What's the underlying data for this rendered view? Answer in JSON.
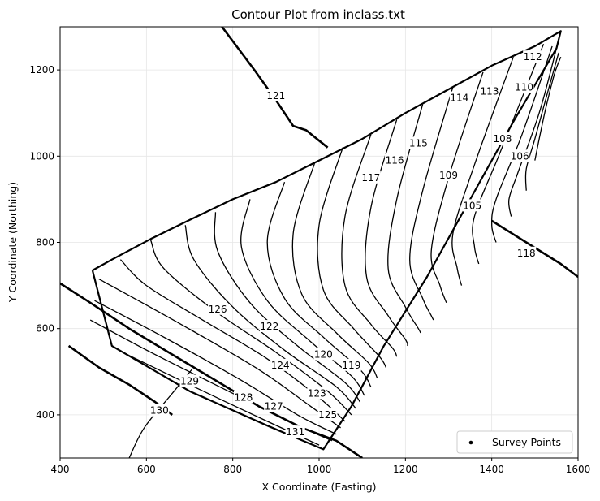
{
  "chart_data": {
    "type": "contour",
    "title": "Contour Plot from inclass.txt",
    "xlabel": "X Coordinate (Easting)",
    "ylabel": "Y Coordinate (Northing)",
    "xlim": [
      400,
      1600
    ],
    "ylim": [
      300,
      1300
    ],
    "xticks": [
      "400",
      "600",
      "800",
      "1000",
      "1200",
      "1400",
      "1600"
    ],
    "yticks": [
      "400",
      "600",
      "800",
      "1000",
      "1200"
    ],
    "grid": true,
    "legend": {
      "placement": "lower-right",
      "entries": [
        "Survey Points"
      ]
    },
    "hull": [
      [
        475,
        735
      ],
      [
        520,
        760
      ],
      [
        610,
        808
      ],
      [
        700,
        852
      ],
      [
        800,
        900
      ],
      [
        900,
        940
      ],
      [
        1000,
        990
      ],
      [
        1100,
        1040
      ],
      [
        1200,
        1100
      ],
      [
        1300,
        1155
      ],
      [
        1400,
        1210
      ],
      [
        1500,
        1255
      ],
      [
        1560,
        1290
      ],
      [
        1550,
        1250
      ],
      [
        1450,
        1080
      ],
      [
        1350,
        900
      ],
      [
        1250,
        720
      ],
      [
        1150,
        560
      ],
      [
        1075,
        420
      ],
      [
        1010,
        320
      ],
      [
        880,
        375
      ],
      [
        700,
        455
      ],
      [
        520,
        560
      ],
      [
        475,
        735
      ]
    ],
    "contours": [
      {
        "level": "131",
        "points": [
          [
            545,
            545
          ],
          [
            700,
            470
          ],
          [
            880,
            385
          ],
          [
            1000,
            330
          ]
        ]
      },
      {
        "level": "130",
        "points": [
          [
            560,
            300
          ],
          [
            595,
            370
          ],
          [
            660,
            450
          ],
          [
            705,
            505
          ]
        ]
      },
      {
        "level": "129",
        "points": [
          [
            470,
            620
          ],
          [
            620,
            540
          ],
          [
            800,
            450
          ],
          [
            940,
            380
          ],
          [
            1030,
            340
          ]
        ]
      },
      {
        "level": "128",
        "points": [
          [
            480,
            665
          ],
          [
            650,
            575
          ],
          [
            820,
            480
          ],
          [
            950,
            400
          ],
          [
            1040,
            355
          ]
        ]
      },
      {
        "level": "127",
        "points": [
          [
            490,
            715
          ],
          [
            680,
            610
          ],
          [
            860,
            505
          ],
          [
            980,
            420
          ],
          [
            1050,
            370
          ]
        ]
      },
      {
        "level": "126",
        "points": [
          [
            540,
            760
          ],
          [
            600,
            700
          ],
          [
            730,
            620
          ],
          [
            880,
            530
          ],
          [
            1000,
            440
          ],
          [
            1060,
            385
          ]
        ]
      },
      {
        "level": "125",
        "points": [
          [
            610,
            805
          ],
          [
            640,
            740
          ],
          [
            760,
            640
          ],
          [
            900,
            545
          ],
          [
            1020,
            455
          ],
          [
            1075,
            400
          ]
        ]
      },
      {
        "level": "124",
        "points": [
          [
            690,
            840
          ],
          [
            710,
            760
          ],
          [
            800,
            650
          ],
          [
            920,
            550
          ],
          [
            1040,
            465
          ],
          [
            1085,
            415
          ]
        ]
      },
      {
        "level": "123",
        "points": [
          [
            760,
            870
          ],
          [
            765,
            780
          ],
          [
            840,
            660
          ],
          [
            950,
            560
          ],
          [
            1060,
            475
          ],
          [
            1095,
            430
          ]
        ]
      },
      {
        "level": "122",
        "points": [
          [
            840,
            900
          ],
          [
            820,
            790
          ],
          [
            880,
            665
          ],
          [
            980,
            570
          ],
          [
            1075,
            490
          ],
          [
            1105,
            445
          ]
        ]
      },
      {
        "level": "120",
        "points": [
          [
            920,
            940
          ],
          [
            880,
            800
          ],
          [
            920,
            670
          ],
          [
            1010,
            580
          ],
          [
            1095,
            505
          ],
          [
            1120,
            465
          ]
        ]
      },
      {
        "level": "119",
        "points": [
          [
            990,
            985
          ],
          [
            940,
            820
          ],
          [
            960,
            680
          ],
          [
            1040,
            590
          ],
          [
            1115,
            520
          ],
          [
            1135,
            485
          ]
        ]
      },
      {
        "level": "118",
        "points": [
          [
            1055,
            1020
          ],
          [
            1000,
            840
          ],
          [
            1010,
            690
          ],
          [
            1080,
            600
          ],
          [
            1140,
            535
          ],
          [
            1155,
            510
          ]
        ]
      },
      {
        "level": "117",
        "points": [
          [
            1120,
            1050
          ],
          [
            1060,
            860
          ],
          [
            1060,
            700
          ],
          [
            1120,
            610
          ],
          [
            1170,
            555
          ],
          [
            1180,
            535
          ]
        ]
      },
      {
        "level": "116",
        "points": [
          [
            1180,
            1085
          ],
          [
            1120,
            880
          ],
          [
            1110,
            720
          ],
          [
            1160,
            630
          ],
          [
            1200,
            575
          ],
          [
            1205,
            560
          ]
        ]
      },
      {
        "level": "115",
        "points": [
          [
            1240,
            1120
          ],
          [
            1180,
            900
          ],
          [
            1160,
            740
          ],
          [
            1200,
            650
          ],
          [
            1230,
            600
          ],
          [
            1235,
            590
          ]
        ]
      },
      {
        "level": "114",
        "points": [
          [
            1310,
            1160
          ],
          [
            1240,
            920
          ],
          [
            1210,
            760
          ],
          [
            1240,
            670
          ],
          [
            1260,
            630
          ],
          [
            1265,
            620
          ]
        ]
      },
      {
        "level": "113",
        "points": [
          [
            1380,
            1195
          ],
          [
            1300,
            950
          ],
          [
            1260,
            780
          ],
          [
            1280,
            700
          ],
          [
            1295,
            660
          ]
        ]
      },
      {
        "level": "112",
        "points": [
          [
            1450,
            1230
          ],
          [
            1360,
            980
          ],
          [
            1310,
            820
          ],
          [
            1320,
            740
          ],
          [
            1330,
            700
          ]
        ]
      },
      {
        "level": "110",
        "points": [
          [
            1520,
            1260
          ],
          [
            1420,
            1010
          ],
          [
            1360,
            860
          ],
          [
            1360,
            790
          ],
          [
            1370,
            750
          ]
        ]
      },
      {
        "level": "109",
        "points": [
          [
            1540,
            1255
          ],
          [
            1470,
            1050
          ],
          [
            1410,
            900
          ],
          [
            1400,
            840
          ],
          [
            1410,
            800
          ]
        ]
      },
      {
        "level": "108",
        "points": [
          [
            1550,
            1250
          ],
          [
            1510,
            1100
          ],
          [
            1460,
            960
          ],
          [
            1440,
            900
          ],
          [
            1445,
            860
          ]
        ]
      },
      {
        "level": "106",
        "points": [
          [
            1555,
            1240
          ],
          [
            1530,
            1150
          ],
          [
            1500,
            1040
          ],
          [
            1480,
            970
          ],
          [
            1480,
            920
          ]
        ]
      },
      {
        "level": "105",
        "points": [
          [
            1560,
            1230
          ],
          [
            1545,
            1190
          ],
          [
            1525,
            1110
          ],
          [
            1510,
            1040
          ],
          [
            1500,
            990
          ]
        ]
      }
    ],
    "level_labels": [
      {
        "text": "131",
        "x": 945,
        "y": 360
      },
      {
        "text": "130",
        "x": 630,
        "y": 410
      },
      {
        "text": "129",
        "x": 700,
        "y": 478
      },
      {
        "text": "128",
        "x": 825,
        "y": 440
      },
      {
        "text": "127",
        "x": 895,
        "y": 420
      },
      {
        "text": "126",
        "x": 765,
        "y": 645
      },
      {
        "text": "125",
        "x": 1020,
        "y": 400
      },
      {
        "text": "124",
        "x": 910,
        "y": 515
      },
      {
        "text": "123",
        "x": 995,
        "y": 450
      },
      {
        "text": "122",
        "x": 885,
        "y": 605
      },
      {
        "text": "120",
        "x": 1010,
        "y": 540
      },
      {
        "text": "119",
        "x": 1075,
        "y": 515
      },
      {
        "text": "118",
        "x": 1480,
        "y": 775
      },
      {
        "text": "117",
        "x": 1120,
        "y": 950
      },
      {
        "text": "116",
        "x": 1175,
        "y": 990
      },
      {
        "text": "115",
        "x": 1230,
        "y": 1030
      },
      {
        "text": "114",
        "x": 1325,
        "y": 1135
      },
      {
        "text": "113",
        "x": 1395,
        "y": 1150
      },
      {
        "text": "112",
        "x": 1495,
        "y": 1230
      },
      {
        "text": "110",
        "x": 1475,
        "y": 1160
      },
      {
        "text": "109",
        "x": 1300,
        "y": 955
      },
      {
        "text": "108",
        "x": 1425,
        "y": 1040
      },
      {
        "text": "106",
        "x": 1465,
        "y": 1000
      },
      {
        "text": "105",
        "x": 1355,
        "y": 885
      },
      {
        "text": "121",
        "x": 900,
        "y": 1140
      }
    ],
    "boundary_lines": [
      [
        [
          775,
          1300
        ],
        [
          850,
          1200
        ],
        [
          900,
          1130
        ],
        [
          940,
          1070
        ],
        [
          970,
          1060
        ],
        [
          1020,
          1020
        ]
      ],
      [
        [
          400,
          705
        ],
        [
          470,
          660
        ],
        [
          560,
          600
        ],
        [
          660,
          540
        ],
        [
          760,
          480
        ],
        [
          860,
          420
        ],
        [
          960,
          370
        ],
        [
          1040,
          340
        ],
        [
          1100,
          300
        ]
      ],
      [
        [
          1400,
          850
        ],
        [
          1480,
          800
        ],
        [
          1560,
          750
        ],
        [
          1600,
          720
        ]
      ],
      [
        [
          420,
          560
        ],
        [
          490,
          510
        ],
        [
          560,
          470
        ],
        [
          620,
          430
        ],
        [
          660,
          400
        ]
      ]
    ]
  }
}
